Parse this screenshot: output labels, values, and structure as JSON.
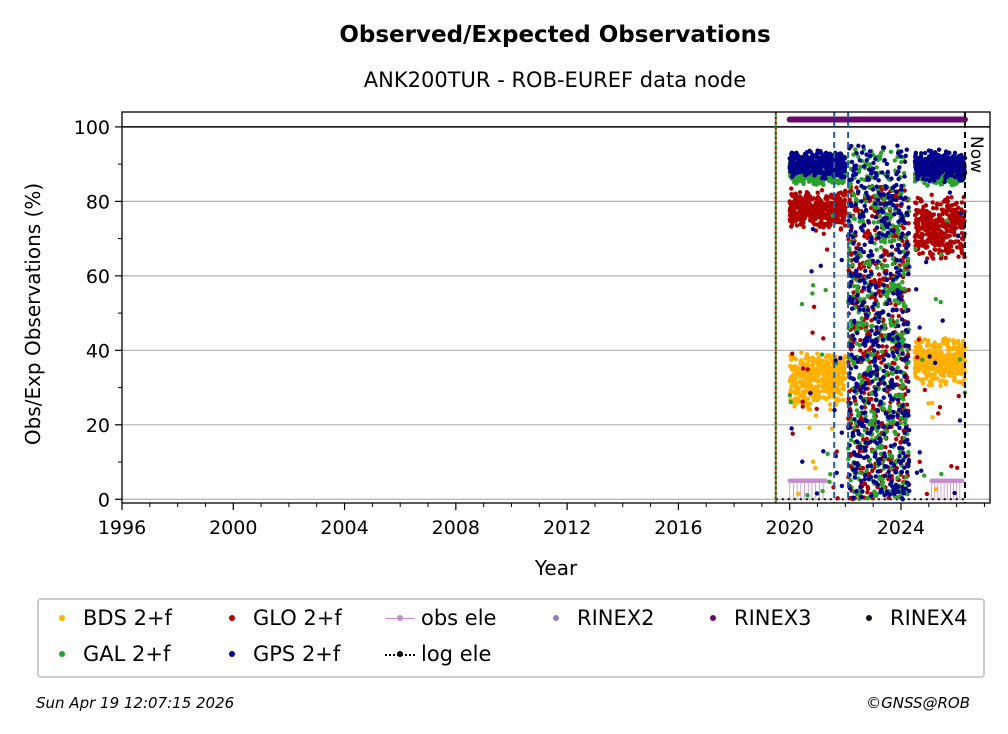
{
  "chart_data": {
    "type": "scatter",
    "title": "Observed/Expected Observations",
    "subtitle": "ANK200TUR - ROB-EUREF data node",
    "xlabel": "Year",
    "ylabel": "Obs/Exp Observations (%)",
    "xlim": [
      1996,
      2027.2
    ],
    "ylim": [
      -1,
      104
    ],
    "xticks": [
      1996,
      2000,
      2004,
      2008,
      2012,
      2016,
      2020,
      2024
    ],
    "xtick_labels": [
      "1996",
      "2000",
      "2004",
      "2008",
      "2012",
      "2016",
      "2020",
      "2024"
    ],
    "yticks": [
      0,
      20,
      40,
      60,
      80,
      100
    ],
    "ytick_labels": [
      "0",
      "20",
      "40",
      "60",
      "80",
      "100"
    ],
    "grid": "horizontal",
    "hline": 100,
    "vlines": [
      {
        "x": 2019.5,
        "color": "#2ca02c",
        "style": "solid"
      },
      {
        "x": 2019.5,
        "color": "#cc0000",
        "style": "dotted"
      },
      {
        "x": 2021.6,
        "color": "#1f5fa8",
        "style": "dashed"
      },
      {
        "x": 2022.1,
        "color": "#1f5fa8",
        "style": "dashed"
      },
      {
        "x": 2026.3,
        "color": "#000000",
        "style": "dashed",
        "label": "Now"
      }
    ],
    "series": [
      {
        "name": "BDS 2+f",
        "color": "#ffb000",
        "segments": [
          {
            "x": [
              2020.0,
              2022.0
            ],
            "y_range": [
              24,
              40
            ]
          },
          {
            "x": [
              2024.5,
              2026.3
            ],
            "y_range": [
              30,
              44
            ]
          }
        ]
      },
      {
        "name": "GLO 2+f",
        "color": "#b00000",
        "segments": [
          {
            "x": [
              2020.0,
              2022.0
            ],
            "y_range": [
              72,
              84
            ]
          },
          {
            "x": [
              2022.1,
              2024.3
            ],
            "y_range": [
              0,
              84
            ]
          },
          {
            "x": [
              2024.5,
              2026.3
            ],
            "y_range": [
              64,
              82
            ]
          }
        ]
      },
      {
        "name": "GAL 2+f",
        "color": "#2ca02c",
        "segments": [
          {
            "x": [
              2020.0,
              2022.0
            ],
            "y_range": [
              84,
              92
            ]
          },
          {
            "x": [
              2022.1,
              2024.3
            ],
            "y_range": [
              0,
              94
            ]
          },
          {
            "x": [
              2024.5,
              2026.3
            ],
            "y_range": [
              84,
              92
            ]
          }
        ]
      },
      {
        "name": "GPS 2+f",
        "color": "#00008b",
        "segments": [
          {
            "x": [
              2020.0,
              2022.0
            ],
            "y_range": [
              86,
              94
            ]
          },
          {
            "x": [
              2022.1,
              2024.3
            ],
            "y_range": [
              0,
              95
            ]
          },
          {
            "x": [
              2024.5,
              2026.3
            ],
            "y_range": [
              85,
              94
            ]
          }
        ]
      },
      {
        "name": "obs ele",
        "color": "#c48fcc",
        "segments": [
          {
            "x": [
              2020.0,
              2021.3
            ],
            "y": 5
          },
          {
            "x": [
              2025.1,
              2026.2
            ],
            "y": 5
          }
        ]
      },
      {
        "name": "RINEX2",
        "color": "#8c7fc0",
        "segments": []
      },
      {
        "name": "RINEX3",
        "color": "#6a0a6a",
        "segments": [
          {
            "x": [
              2020.0,
              2026.3
            ],
            "y": 102
          }
        ]
      },
      {
        "name": "RINEX4",
        "color": "#1a0a1a",
        "segments": []
      },
      {
        "name": "log ele",
        "color": "#000000",
        "segments": [
          {
            "x": [
              2019.5,
              2026.3
            ],
            "y": 0
          }
        ]
      }
    ]
  },
  "legend": {
    "bds": "BDS 2+f",
    "glo": "GLO 2+f",
    "obs_ele": "obs ele",
    "rinex2": "RINEX2",
    "rinex3": "RINEX3",
    "rinex4": "RINEX4",
    "gal": "GAL 2+f",
    "gps": "GPS 2+f",
    "log_ele": "log ele"
  },
  "colors": {
    "bds": "#ffb000",
    "glo": "#b00000",
    "obs_ele": "#c48fcc",
    "rinex2": "#8c7fc0",
    "rinex3": "#6a0a6a",
    "rinex4": "#1a0a1a",
    "gal": "#2ca02c",
    "gps": "#00008b",
    "log_ele": "#000000"
  },
  "now_label": "Now",
  "footer": {
    "timestamp": "Sun Apr 19 12:07:15 2026",
    "credit": "©GNSS@ROB"
  }
}
